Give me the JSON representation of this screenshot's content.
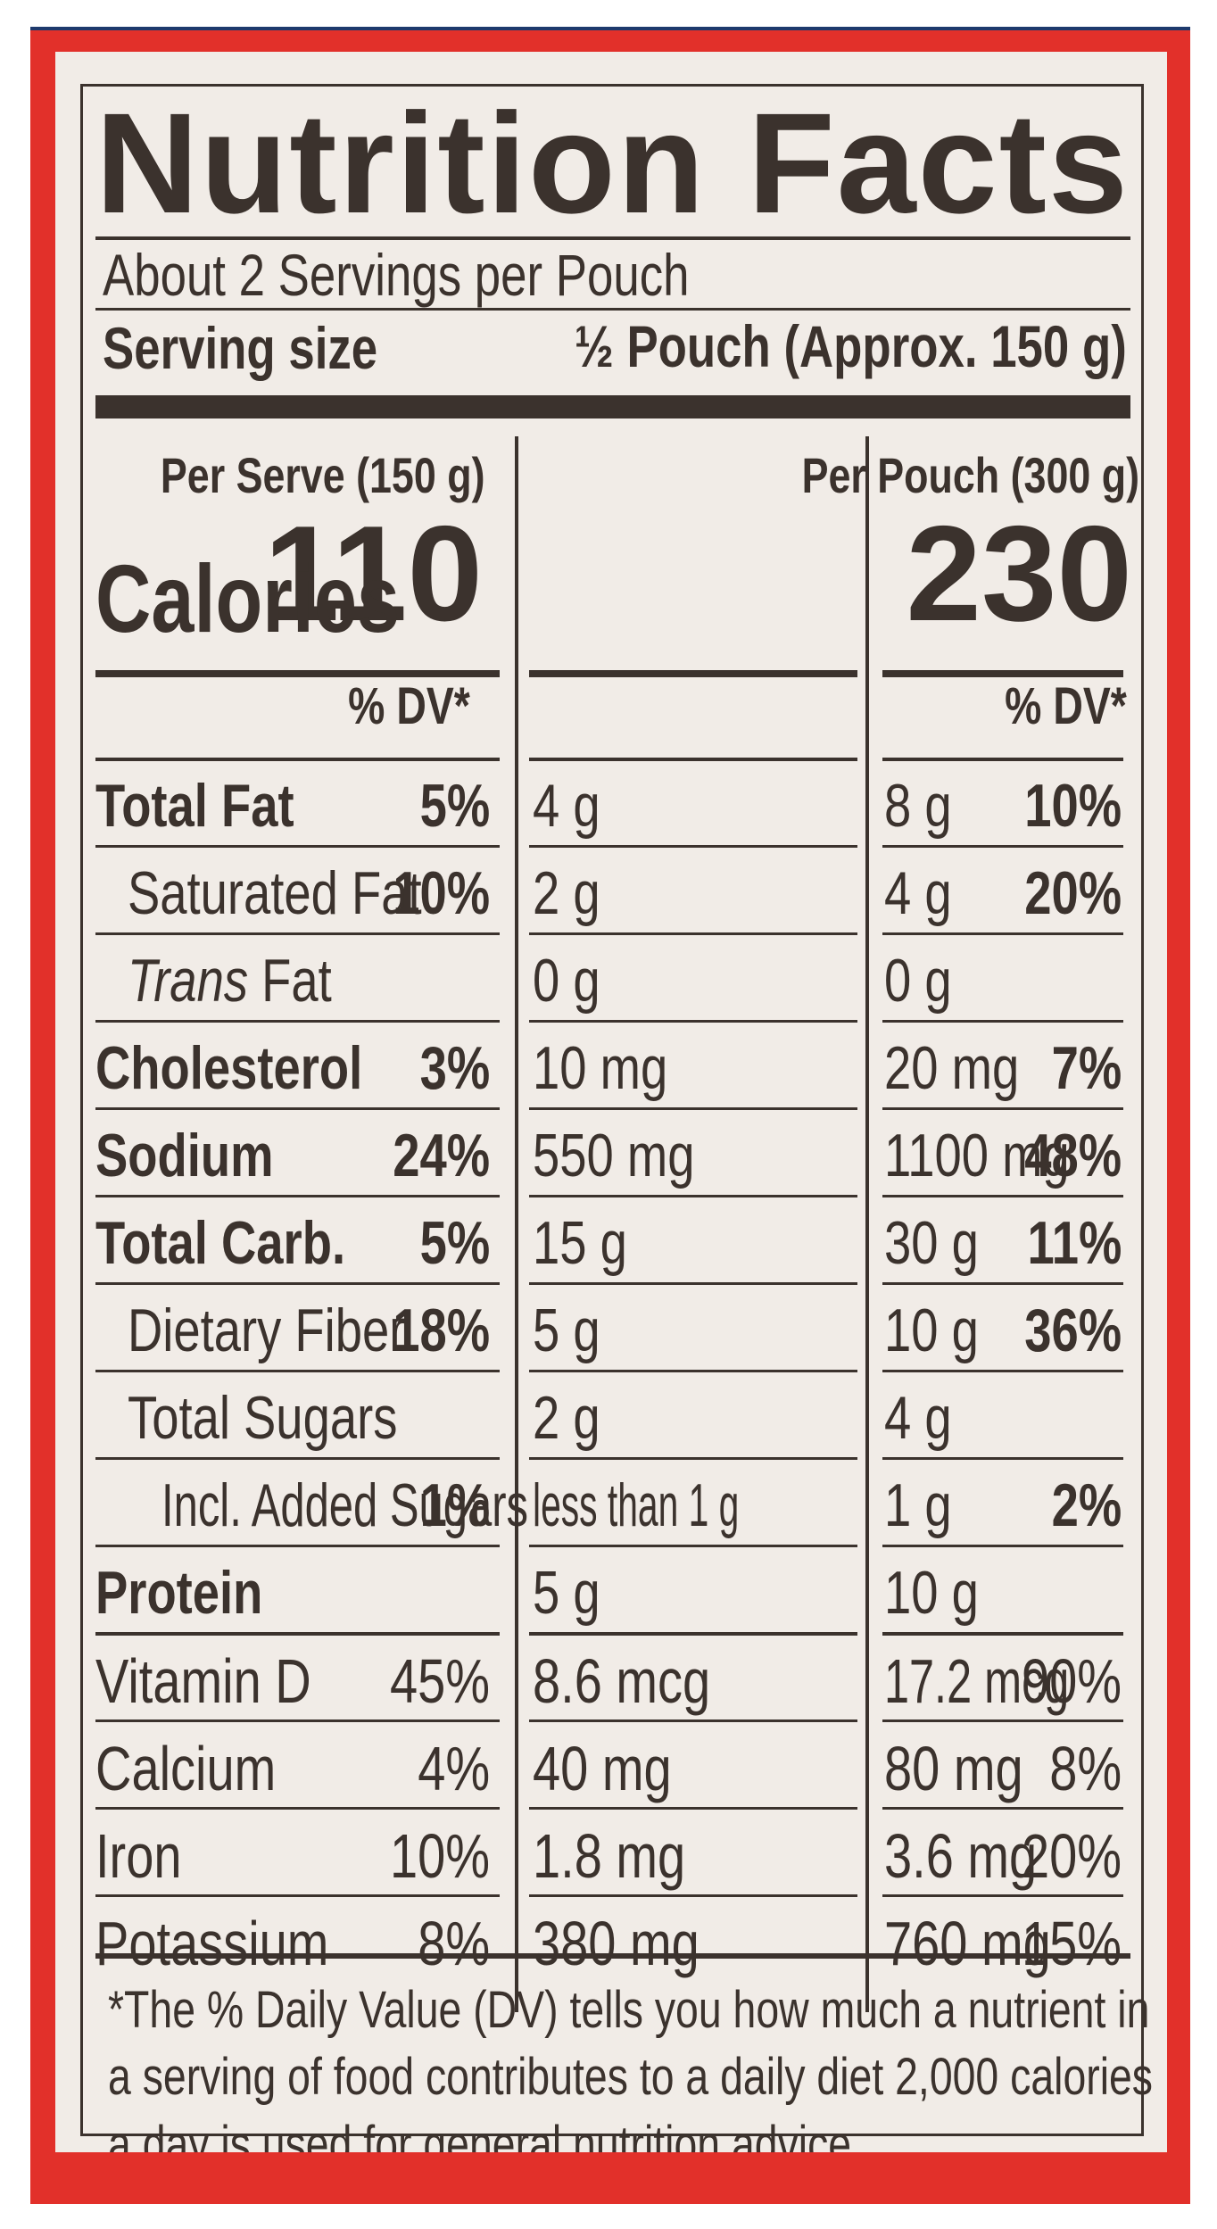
{
  "title": "Nutrition Facts",
  "servings_per_container": "About 2 Servings per Pouch",
  "serving_size_label": "Serving size",
  "serving_size_value": "½ Pouch (Approx. 150 g)",
  "columns": {
    "serve_header": "Per Serve (150 g)",
    "pouch_header": "Per Pouch (300 g)",
    "dv_header": "% DV*"
  },
  "calories": {
    "label": "Calories",
    "serve": "110",
    "pouch": "230"
  },
  "rows": [
    {
      "label": "Total Fat",
      "serve_amt": "4 g",
      "serve_dv": "5%",
      "pouch_amt": "8 g",
      "pouch_dv": "10%"
    },
    {
      "label": "Saturated Fat",
      "serve_amt": "2 g",
      "serve_dv": "10%",
      "pouch_amt": "4 g",
      "pouch_dv": "20%"
    },
    {
      "label_italic": "Trans",
      "label_rest": " Fat",
      "serve_amt": "0 g",
      "serve_dv": "",
      "pouch_amt": "0 g",
      "pouch_dv": ""
    },
    {
      "label": "Cholesterol",
      "serve_amt": "10 mg",
      "serve_dv": "3%",
      "pouch_amt": "20 mg",
      "pouch_dv": "7%"
    },
    {
      "label": "Sodium",
      "serve_amt": "550 mg",
      "serve_dv": "24%",
      "pouch_amt": "1100 mg",
      "pouch_dv": "48%"
    },
    {
      "label": "Total Carb.",
      "serve_amt": "15 g",
      "serve_dv": "5%",
      "pouch_amt": "30 g",
      "pouch_dv": "11%"
    },
    {
      "label": "Dietary Fiber",
      "serve_amt": "5 g",
      "serve_dv": "18%",
      "pouch_amt": "10 g",
      "pouch_dv": "36%"
    },
    {
      "label": "Total Sugars",
      "serve_amt": "2 g",
      "serve_dv": "",
      "pouch_amt": "4 g",
      "pouch_dv": ""
    },
    {
      "label": "Incl. Added Sugars",
      "serve_amt": "less than 1 g",
      "serve_dv": "1%",
      "pouch_amt": "1 g",
      "pouch_dv": "2%"
    },
    {
      "label": "Protein",
      "serve_amt": "5 g",
      "serve_dv": "",
      "pouch_amt": "10 g",
      "pouch_dv": ""
    }
  ],
  "vitamins": [
    {
      "label": "Vitamin D",
      "serve_amt": "8.6 mcg",
      "serve_dv": "45%",
      "pouch_amt": "17.2 mcg",
      "pouch_dv": "90%"
    },
    {
      "label": "Calcium",
      "serve_amt": "40 mg",
      "serve_dv": "4%",
      "pouch_amt": "80 mg",
      "pouch_dv": "8%"
    },
    {
      "label": "Iron",
      "serve_amt": "1.8 mg",
      "serve_dv": "10%",
      "pouch_amt": "3.6 mg",
      "pouch_dv": "20%"
    },
    {
      "label": "Potassium",
      "serve_amt": "380 mg",
      "serve_dv": "8%",
      "pouch_amt": "760 mg",
      "pouch_dv": "15%"
    }
  ],
  "footnote": "*The % Daily Value (DV) tells you how much a nutrient in a serving of food contributes to a daily diet 2,000 calories a day is used for general nutrition advice.",
  "colors": {
    "package_red": "#e2302a",
    "label_bg": "#f1ece7",
    "ink": "#3b322d",
    "top_band": "#1e3a6d"
  }
}
